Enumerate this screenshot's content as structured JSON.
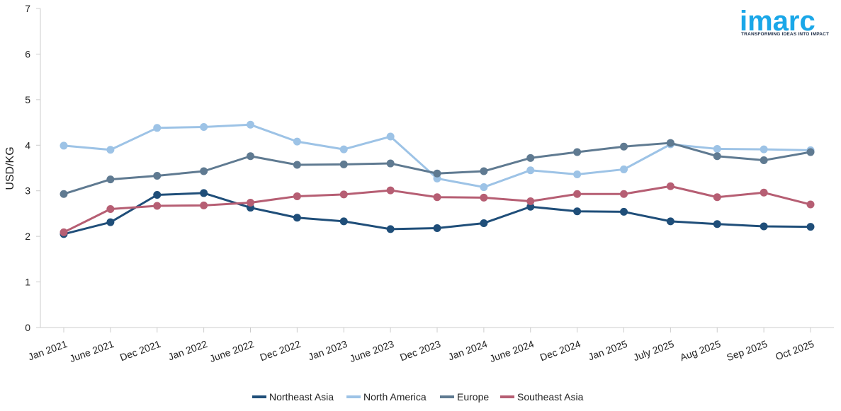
{
  "logo": {
    "text": "imarc",
    "tagline": "TRANSFORMING IDEAS INTO IMPACT"
  },
  "chart_data": {
    "type": "line",
    "ylabel": "USD/KG",
    "ylim": [
      0,
      7
    ],
    "yticks": [
      0,
      1,
      2,
      3,
      4,
      5,
      6,
      7
    ],
    "grid": false,
    "legend": "bottom-center",
    "categories": [
      "Jan 2021",
      "June 2021",
      "Dec 2021",
      "Jan 2022",
      "June 2022",
      "Dec 2022",
      "Jan 2023",
      "June 2023",
      "Dec 2023",
      "Jan 2024",
      "June 2024",
      "Dec 2024",
      "Jan 2025",
      "July 2025",
      "Aug 2025",
      "Sep 2025",
      "Oct 2025"
    ],
    "series": [
      {
        "name": "Northeast Asia",
        "color": "#1f4e79",
        "values": [
          2.05,
          2.31,
          2.91,
          2.95,
          2.63,
          2.41,
          2.33,
          2.16,
          2.18,
          2.29,
          2.65,
          2.55,
          2.54,
          2.33,
          2.27,
          2.22,
          2.21
        ]
      },
      {
        "name": "North America",
        "color": "#9dc3e6",
        "values": [
          3.99,
          3.9,
          4.38,
          4.4,
          4.45,
          4.08,
          3.91,
          4.19,
          3.27,
          3.08,
          3.45,
          3.36,
          3.47,
          4.02,
          3.92,
          3.91,
          3.89
        ]
      },
      {
        "name": "Europe",
        "color": "#5f7a91",
        "values": [
          2.93,
          3.25,
          3.33,
          3.43,
          3.76,
          3.57,
          3.58,
          3.6,
          3.38,
          3.43,
          3.72,
          3.85,
          3.97,
          4.05,
          3.76,
          3.67,
          3.85
        ]
      },
      {
        "name": "Southeast Asia",
        "color": "#b65e73",
        "values": [
          2.09,
          2.6,
          2.67,
          2.68,
          2.74,
          2.88,
          2.92,
          3.01,
          2.86,
          2.85,
          2.77,
          2.93,
          2.93,
          3.1,
          2.86,
          2.96,
          2.7
        ]
      }
    ]
  }
}
